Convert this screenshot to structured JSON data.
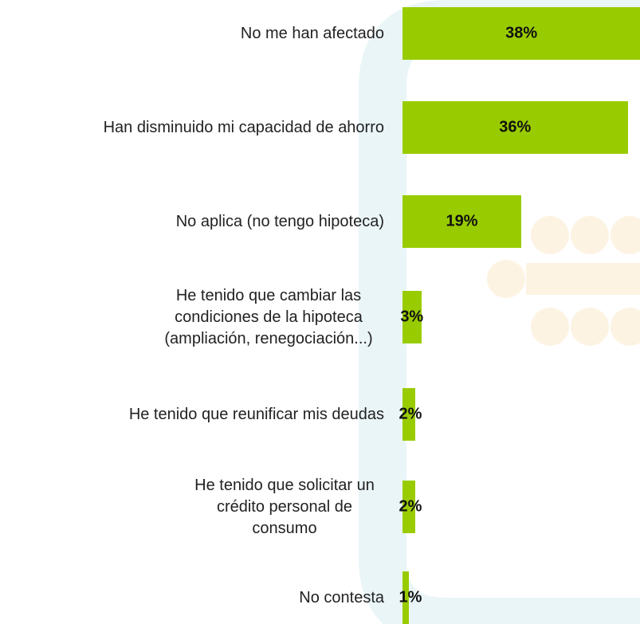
{
  "chart_data": {
    "type": "bar",
    "orientation": "horizontal",
    "categories": [
      "No me han afectado",
      "Han disminuido mi capacidad de ahorro",
      "No aplica (no tengo hipoteca)",
      "He tenido que cambiar las condiciones de la hipoteca (ampliación, renegociación...)",
      "He tenido que reunificar mis deudas",
      "He tenido que solicitar un crédito personal de consumo",
      "No contesta"
    ],
    "values": [
      38,
      36,
      19,
      3,
      2,
      2,
      1
    ],
    "value_labels": [
      "38%",
      "36%",
      "19%",
      "3%",
      "2%",
      "2%",
      "1%"
    ],
    "color": "#99cc00"
  }
}
